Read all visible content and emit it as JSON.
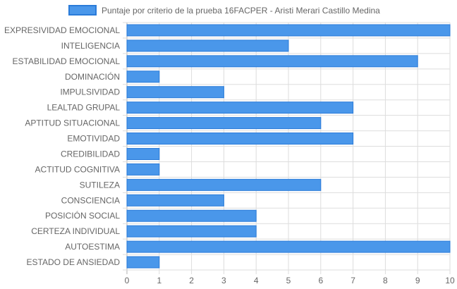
{
  "chart_data": {
    "type": "bar",
    "orientation": "horizontal",
    "categories": [
      "EXPRESIVIDAD EMOCIONAL",
      "INTELIGENCIA",
      "ESTABILIDAD EMOCIONAL",
      "DOMINACIÓN",
      "IMPULSIVIDAD",
      "LEALTAD GRUPAL",
      "APTITUD SITUACIONAL",
      "EMOTIVIDAD",
      "CREDIBILIDAD",
      "ACTITUD COGNITIVA",
      "SUTILEZA",
      "CONSCIENCIA",
      "POSICIÓN SOCIAL",
      "CERTEZA INDIVIDUAL",
      "AUTOESTIMA",
      "ESTADO DE ANSIEDAD"
    ],
    "series": [
      {
        "name": "Puntaje por criterio de la prueba 16FACPER - Aristi Merari Castillo Medina",
        "values": [
          10,
          5,
          9,
          1,
          3,
          7,
          6,
          7,
          1,
          1,
          6,
          3,
          4,
          4,
          10,
          1
        ],
        "color": "#4a97ea",
        "border_color": "#2a7bd9"
      }
    ],
    "x_ticks": [
      "0",
      "1",
      "2",
      "3",
      "4",
      "5",
      "6",
      "7",
      "8",
      "9",
      "10"
    ],
    "xlim": [
      0,
      10
    ],
    "grid": true,
    "legend_position": "top-center",
    "title": "",
    "xlabel": "",
    "ylabel": ""
  }
}
